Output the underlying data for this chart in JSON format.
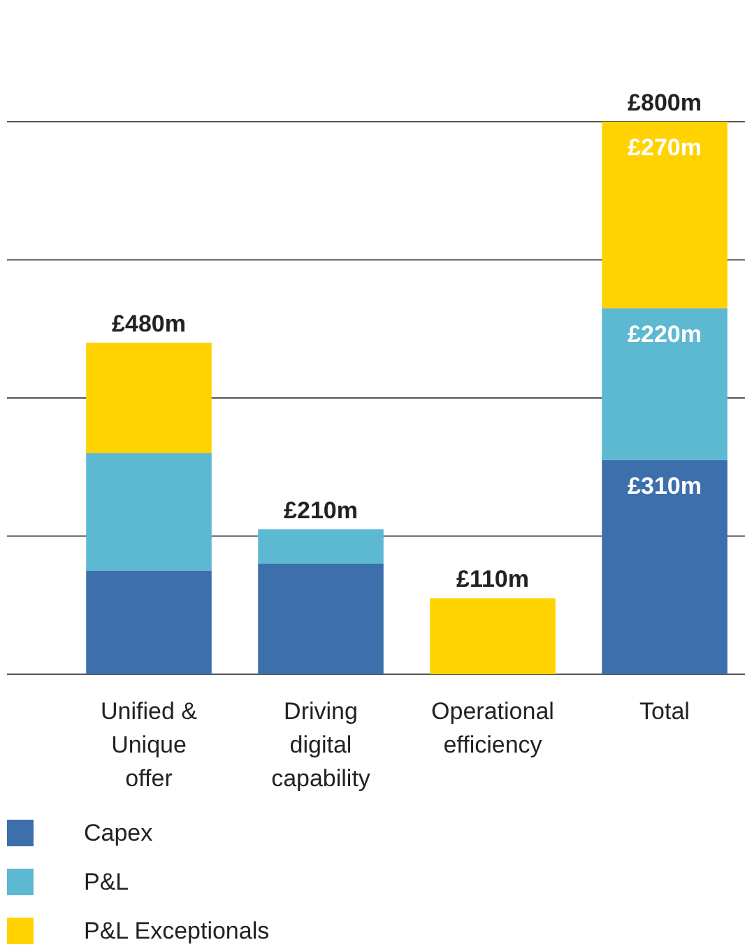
{
  "chart_data": {
    "type": "bar",
    "stacked": true,
    "categories": [
      "Unified & Unique offer",
      "Driving digital capability",
      "Operational efficiency",
      "Total"
    ],
    "series": [
      {
        "name": "Capex",
        "color": "#3d6fad",
        "values": [
          150,
          160,
          0,
          310
        ],
        "value_labels": [
          null,
          null,
          null,
          "£310m"
        ]
      },
      {
        "name": "P&L",
        "color": "#5db8d2",
        "values": [
          170,
          50,
          0,
          220
        ],
        "value_labels": [
          null,
          null,
          null,
          "£220m"
        ]
      },
      {
        "name": "P&L Exceptionals",
        "color": "#ffd200",
        "values": [
          160,
          0,
          110,
          270
        ],
        "value_labels": [
          null,
          null,
          null,
          "£270m"
        ]
      }
    ],
    "totals": [
      "£480m",
      "£210m",
      "£110m",
      "£800m"
    ],
    "ylim": [
      0,
      800
    ],
    "yticks": [
      {
        "value": 0,
        "label": null
      },
      {
        "value": 200,
        "label": null
      },
      {
        "value": 400,
        "label": null
      },
      {
        "value": 600,
        "label": null
      },
      {
        "value": 800,
        "label": null
      }
    ],
    "tick_labels": "x",
    "grid": "y",
    "legend": "bottom"
  }
}
